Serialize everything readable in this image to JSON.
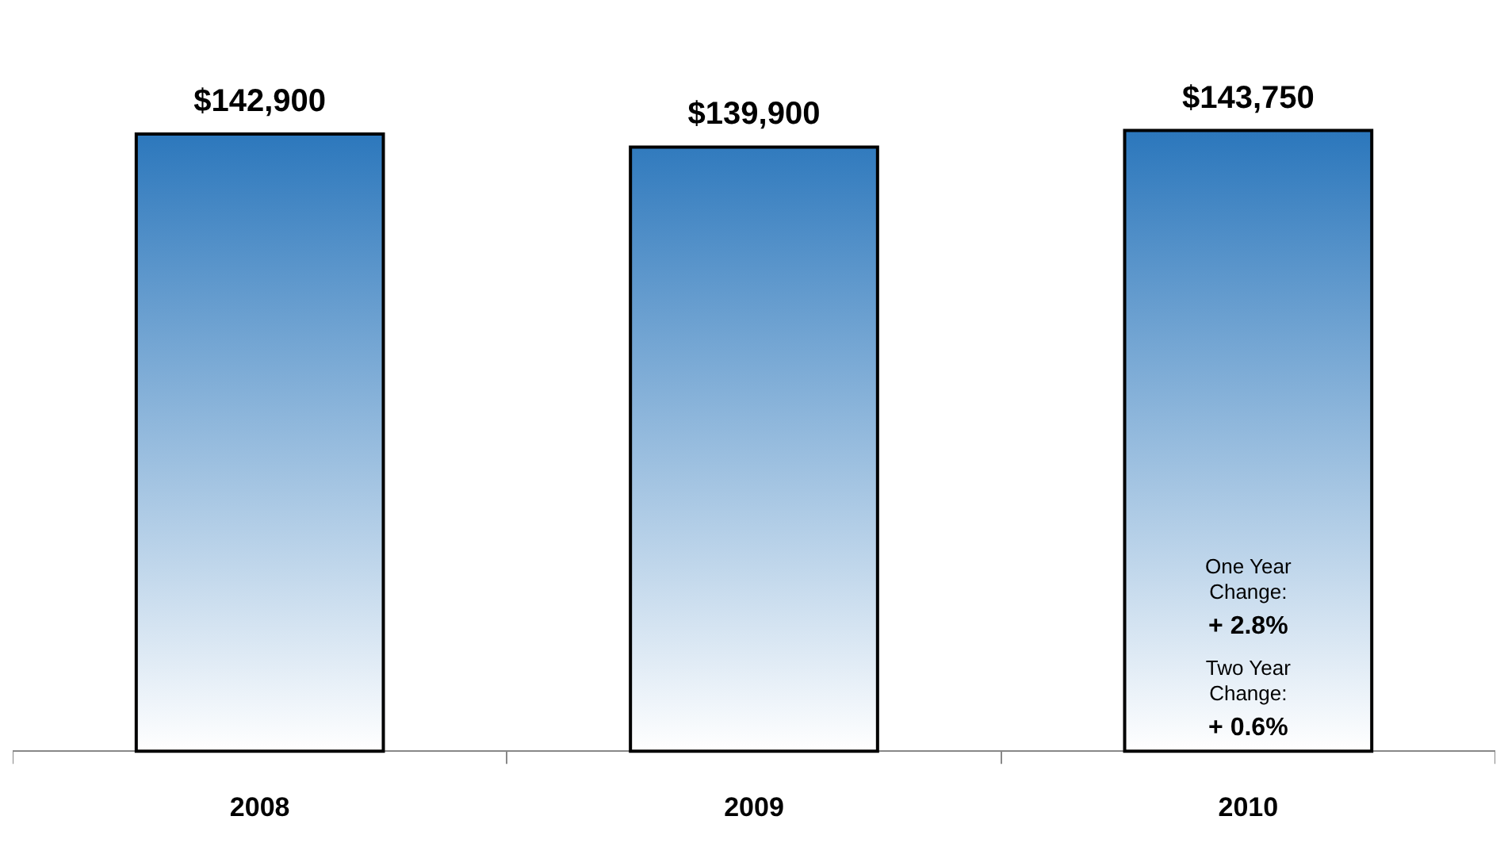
{
  "chart_data": {
    "type": "bar",
    "categories": [
      "2008",
      "2009",
      "2010"
    ],
    "values": [
      142900,
      139900,
      143750
    ],
    "value_labels": [
      "$142,900",
      "$139,900",
      "$143,750"
    ],
    "color": "#1f6fb8",
    "annotations": [
      "One Year Change:",
      "+ 2.8%",
      "Two Year Change:",
      "+ 0.6%"
    ],
    "grid": false,
    "legend": false
  }
}
